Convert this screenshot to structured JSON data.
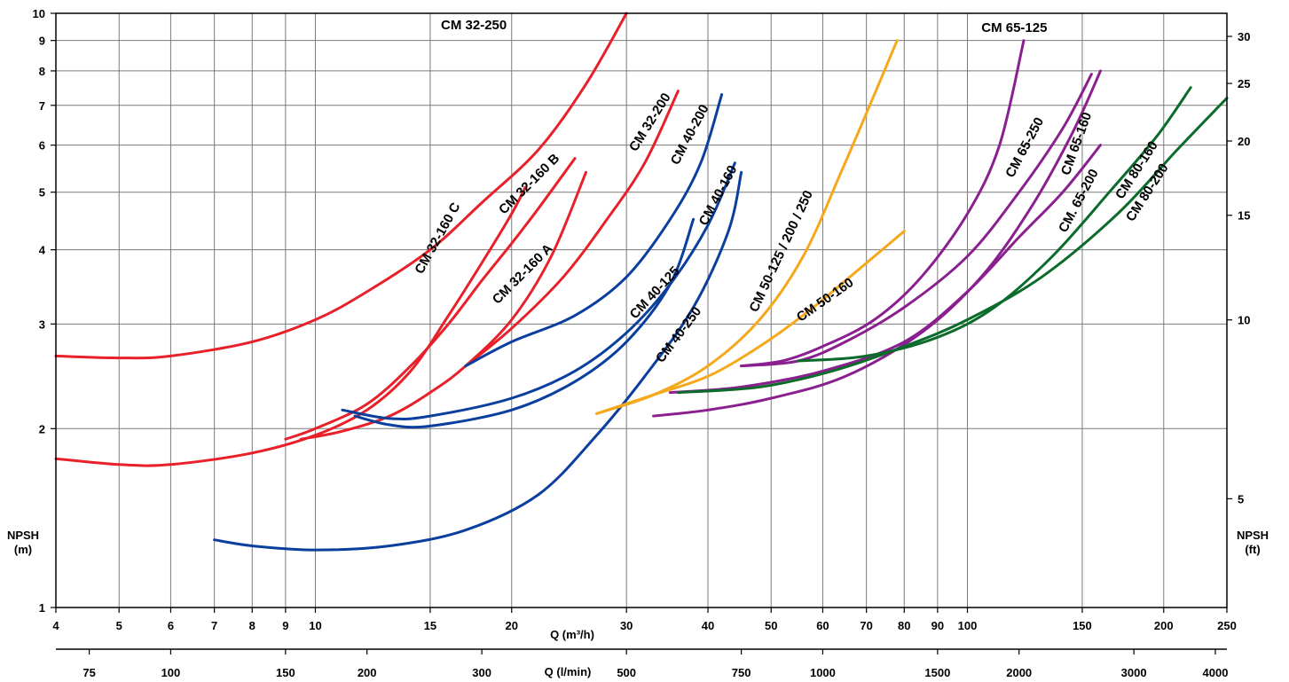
{
  "chart_data": {
    "type": "line",
    "scale": "log-log",
    "grid": true,
    "x_axis": {
      "label": "Q (m³/h)",
      "range": [
        4,
        250
      ],
      "ticks": [
        4,
        5,
        6,
        7,
        8,
        9,
        10,
        15,
        20,
        30,
        40,
        50,
        60,
        70,
        80,
        90,
        100,
        150,
        200,
        250
      ]
    },
    "x2_axis": {
      "label": "Q (l/min)",
      "ticks": [
        75,
        100,
        150,
        200,
        300,
        500,
        750,
        1000,
        1500,
        2000,
        3000,
        4000
      ]
    },
    "y_axis": {
      "label_line1": "NPSH",
      "label_line2": "(m)",
      "range": [
        1,
        10
      ],
      "ticks": [
        1,
        2,
        3,
        4,
        5,
        6,
        7,
        8,
        9,
        10
      ]
    },
    "y2_axis": {
      "label_line1": "NPSH",
      "label_line2": "(ft)",
      "ticks": [
        5,
        10,
        15,
        20,
        25,
        30
      ]
    },
    "colors": {
      "CM 32": "#e8202a",
      "CM 40": "#0b3f9e",
      "CM 50": "#f5a81b",
      "CM 65": "#8a1f8f",
      "CM 80": "#0b6b2a"
    },
    "series": [
      {
        "name": "CM 32-250",
        "color": "#e8202a",
        "label_pos": [
          17.5,
          9.4
        ],
        "label_rot": 0,
        "points": [
          [
            4,
            2.65
          ],
          [
            5,
            2.63
          ],
          [
            6,
            2.65
          ],
          [
            8,
            2.8
          ],
          [
            10,
            3.05
          ],
          [
            12,
            3.4
          ],
          [
            15,
            4.0
          ],
          [
            18,
            4.8
          ],
          [
            22,
            5.9
          ],
          [
            26,
            7.6
          ],
          [
            30,
            10
          ]
        ]
      },
      {
        "name": "CM 32-160 C",
        "color": "#e8202a",
        "label_pos": [
          15.6,
          4.15
        ],
        "label_rot": -61,
        "points": [
          [
            4,
            1.78
          ],
          [
            5,
            1.74
          ],
          [
            6,
            1.74
          ],
          [
            8,
            1.82
          ],
          [
            10,
            1.95
          ],
          [
            12,
            2.15
          ],
          [
            14,
            2.5
          ],
          [
            16,
            3.1
          ],
          [
            18,
            3.8
          ],
          [
            20,
            4.6
          ],
          [
            21,
            5.1
          ]
        ]
      },
      {
        "name": "CM 32-160 B",
        "color": "#e8202a",
        "label_pos": [
          21.5,
          5.1
        ],
        "label_rot": -45,
        "points": [
          [
            9,
            1.92
          ],
          [
            10,
            2.0
          ],
          [
            12,
            2.2
          ],
          [
            14,
            2.55
          ],
          [
            16,
            3.0
          ],
          [
            18,
            3.55
          ],
          [
            20,
            4.1
          ],
          [
            22,
            4.7
          ],
          [
            25,
            5.7
          ]
        ]
      },
      {
        "name": "CM 32-160 A",
        "color": "#e8202a",
        "label_pos": [
          21.0,
          3.6
        ],
        "label_rot": -45,
        "points": [
          [
            9.5,
            1.92
          ],
          [
            11,
            1.98
          ],
          [
            13,
            2.1
          ],
          [
            15,
            2.3
          ],
          [
            17,
            2.55
          ],
          [
            20,
            3.05
          ],
          [
            23,
            3.9
          ],
          [
            26,
            5.4
          ]
        ]
      },
      {
        "name": "CM 32-200",
        "color": "#e8202a",
        "label_pos": [
          33.0,
          6.5
        ],
        "label_rot": -58,
        "points": [
          [
            17,
            2.55
          ],
          [
            20,
            2.95
          ],
          [
            24,
            3.6
          ],
          [
            28,
            4.5
          ],
          [
            32,
            5.6
          ],
          [
            36,
            7.4
          ]
        ]
      },
      {
        "name": "CM 40-200",
        "color": "#0b3f9e",
        "label_pos": [
          38.0,
          6.2
        ],
        "label_rot": -62,
        "points": [
          [
            17,
            2.55
          ],
          [
            20,
            2.8
          ],
          [
            25,
            3.1
          ],
          [
            30,
            3.6
          ],
          [
            35,
            4.5
          ],
          [
            39,
            5.6
          ],
          [
            42,
            7.3
          ]
        ]
      },
      {
        "name": "CM 40-160",
        "color": "#0b3f9e",
        "label_pos": [
          42.0,
          4.9
        ],
        "label_rot": -62,
        "points": [
          [
            11,
            2.15
          ],
          [
            13,
            2.08
          ],
          [
            15,
            2.1
          ],
          [
            20,
            2.25
          ],
          [
            25,
            2.5
          ],
          [
            30,
            2.9
          ],
          [
            35,
            3.5
          ],
          [
            40,
            4.4
          ],
          [
            44,
            5.6
          ]
        ]
      },
      {
        "name": "CM 40-125",
        "color": "#0b3f9e",
        "label_pos": [
          33.5,
          3.35
        ],
        "label_rot": -47,
        "points": [
          [
            11.5,
            2.1
          ],
          [
            13,
            2.03
          ],
          [
            15,
            2.02
          ],
          [
            20,
            2.15
          ],
          [
            25,
            2.4
          ],
          [
            30,
            2.8
          ],
          [
            35,
            3.5
          ],
          [
            38,
            4.5
          ]
        ]
      },
      {
        "name": "CM 40-250",
        "color": "#0b3f9e",
        "label_pos": [
          36.5,
          2.85
        ],
        "label_rot": -53,
        "points": [
          [
            7,
            1.3
          ],
          [
            8,
            1.27
          ],
          [
            10,
            1.25
          ],
          [
            13,
            1.27
          ],
          [
            17,
            1.35
          ],
          [
            22,
            1.55
          ],
          [
            27,
            1.95
          ],
          [
            32,
            2.45
          ],
          [
            38,
            3.2
          ],
          [
            43,
            4.3
          ],
          [
            45,
            5.4
          ]
        ]
      },
      {
        "name": "CM 50-125 / 200 / 250",
        "color": "#f5a81b",
        "label_pos": [
          52.5,
          3.95
        ],
        "label_rot": -65,
        "points": [
          [
            27,
            2.12
          ],
          [
            33,
            2.28
          ],
          [
            40,
            2.55
          ],
          [
            48,
            3.05
          ],
          [
            56,
            3.9
          ],
          [
            64,
            5.4
          ],
          [
            72,
            7.3
          ],
          [
            78,
            9.0
          ]
        ]
      },
      {
        "name": "CM 50-160",
        "color": "#f5a81b",
        "label_pos": [
          61.0,
          3.25
        ],
        "label_rot": -35,
        "points": [
          [
            27,
            2.12
          ],
          [
            33,
            2.28
          ],
          [
            40,
            2.45
          ],
          [
            48,
            2.75
          ],
          [
            57,
            3.15
          ],
          [
            67,
            3.65
          ],
          [
            80,
            4.3
          ]
        ]
      },
      {
        "name": "CM 65-125",
        "color": "#8a1f8f",
        "label_pos": [
          118,
          9.3
        ],
        "label_rot": 0,
        "points": [
          [
            45,
            2.55
          ],
          [
            52,
            2.6
          ],
          [
            60,
            2.75
          ],
          [
            72,
            3.05
          ],
          [
            85,
            3.6
          ],
          [
            100,
            4.6
          ],
          [
            112,
            6.0
          ],
          [
            122,
            9.0
          ]
        ]
      },
      {
        "name": "CM 65-250",
        "color": "#8a1f8f",
        "label_pos": [
          124,
          5.9
        ],
        "label_rot": -62,
        "points": [
          [
            45,
            2.55
          ],
          [
            55,
            2.6
          ],
          [
            65,
            2.8
          ],
          [
            80,
            3.2
          ],
          [
            100,
            3.9
          ],
          [
            120,
            5.0
          ],
          [
            140,
            6.4
          ],
          [
            155,
            7.9
          ]
        ]
      },
      {
        "name": "CM 65-160",
        "color": "#8a1f8f",
        "label_pos": [
          149,
          6.0
        ],
        "label_rot": -70,
        "points": [
          [
            33,
            2.1
          ],
          [
            40,
            2.15
          ],
          [
            50,
            2.25
          ],
          [
            65,
            2.45
          ],
          [
            85,
            2.9
          ],
          [
            105,
            3.6
          ],
          [
            125,
            4.7
          ],
          [
            145,
            6.3
          ],
          [
            160,
            8.0
          ]
        ]
      },
      {
        "name": "CM. 65-200",
        "color": "#8a1f8f",
        "label_pos": [
          150,
          4.8
        ],
        "label_rot": -62,
        "points": [
          [
            35,
            2.3
          ],
          [
            45,
            2.35
          ],
          [
            60,
            2.5
          ],
          [
            80,
            2.8
          ],
          [
            100,
            3.4
          ],
          [
            120,
            4.2
          ],
          [
            140,
            5.0
          ],
          [
            160,
            6.0
          ]
        ]
      },
      {
        "name": "CM 80-160",
        "color": "#0b6b2a",
        "label_pos": [
          184,
          5.4
        ],
        "label_rot": -57,
        "points": [
          [
            55,
            2.6
          ],
          [
            70,
            2.65
          ],
          [
            90,
            2.85
          ],
          [
            110,
            3.2
          ],
          [
            135,
            3.9
          ],
          [
            165,
            5.0
          ],
          [
            195,
            6.2
          ],
          [
            220,
            7.5
          ]
        ]
      },
      {
        "name": "CM 80-200",
        "color": "#0b6b2a",
        "label_pos": [
          191,
          4.95
        ],
        "label_rot": -57,
        "points": [
          [
            36,
            2.3
          ],
          [
            48,
            2.35
          ],
          [
            62,
            2.5
          ],
          [
            80,
            2.75
          ],
          [
            100,
            3.05
          ],
          [
            130,
            3.6
          ],
          [
            170,
            4.6
          ],
          [
            210,
            5.9
          ],
          [
            250,
            7.2
          ]
        ]
      }
    ]
  }
}
